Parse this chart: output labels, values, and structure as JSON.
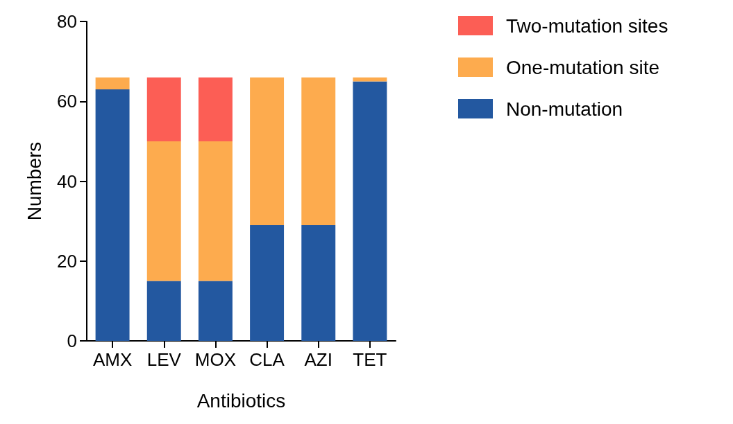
{
  "chart_data": {
    "type": "bar",
    "stacked": true,
    "xlabel": "Antibiotics",
    "ylabel": "Numbers",
    "categories": [
      "AMX",
      "LEV",
      "MOX",
      "CLA",
      "AZI",
      "TET"
    ],
    "series": [
      {
        "name": "Non-mutation",
        "color": "#2358a0",
        "values": [
          63,
          15,
          15,
          29,
          29,
          65
        ]
      },
      {
        "name": "One-mutation site",
        "color": "#fdab4e",
        "values": [
          3,
          35,
          35,
          37,
          37,
          1
        ]
      },
      {
        "name": "Two-mutation sites",
        "color": "#fc5e55",
        "values": [
          0,
          16,
          16,
          0,
          0,
          0
        ]
      }
    ],
    "ylim": [
      0,
      80
    ],
    "yticks": [
      0,
      20,
      40,
      60,
      80
    ],
    "grid": false,
    "legend": "top right"
  }
}
